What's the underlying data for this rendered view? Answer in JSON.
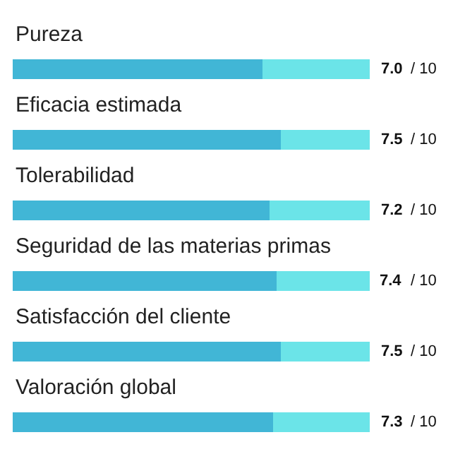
{
  "chart_data": {
    "type": "bar",
    "orientation": "horizontal",
    "stacked": true,
    "categories": [
      "Pureza",
      "Eficacia estimada",
      "Tolerabilidad",
      "Seguridad de las materias primas",
      "Satisfacción del cliente",
      "Valoración global"
    ],
    "series": [
      {
        "color": "#41b6d6",
        "values": [
          7.0,
          7.5,
          7.2,
          7.4,
          7.5,
          7.3
        ],
        "value_labels": [
          "7.0",
          "7.5",
          "7.2",
          "7.4",
          "7.5",
          "7.3"
        ]
      },
      {
        "color": "#6be4e8",
        "values": [
          3.0,
          2.5,
          2.8,
          2.6,
          2.5,
          2.7
        ]
      }
    ],
    "xlim": [
      0,
      10
    ],
    "annotations": [
      "/ 10",
      "/ 10",
      "/ 10",
      "/ 10",
      "/ 10",
      "/ 10"
    ]
  }
}
